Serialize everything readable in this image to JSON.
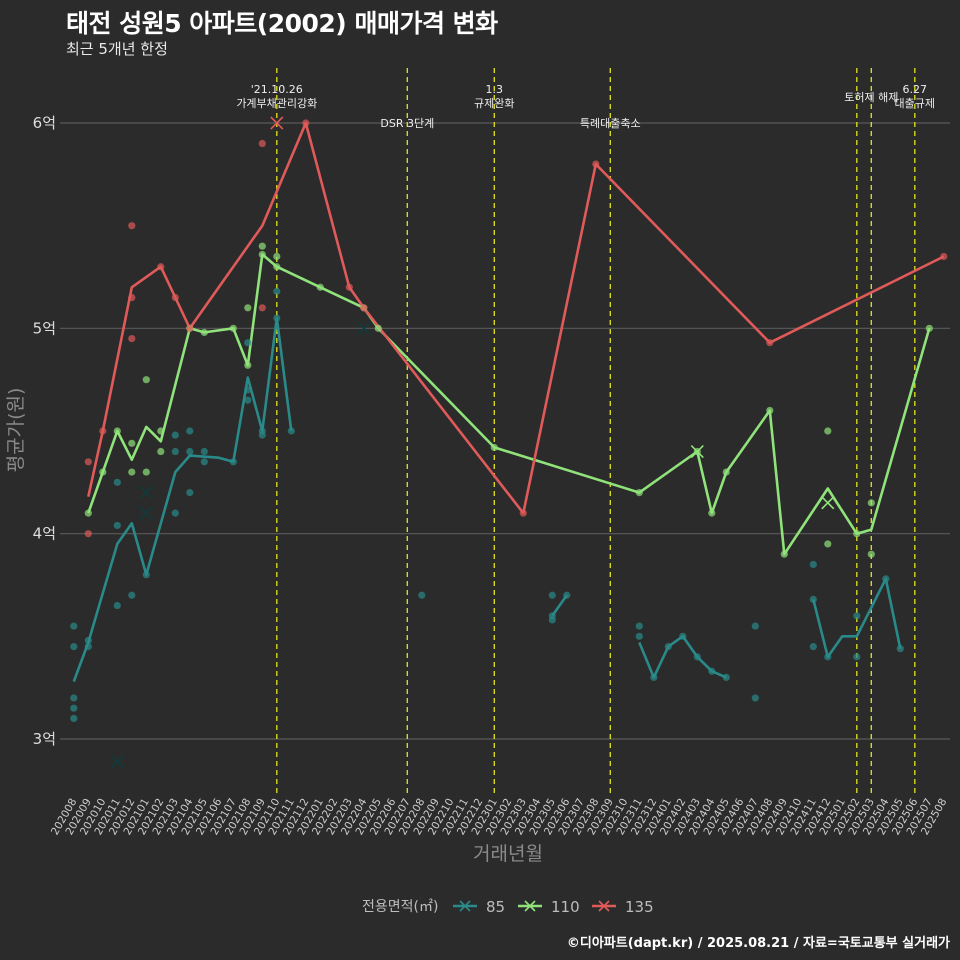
{
  "title": "태전 성원5 아파트(2002) 매매가격 변화",
  "subtitle": "최근 5개년 한정",
  "credit": "©디아파트(dapt.kr) / 2025.08.21 / 자료=국토교통부 실거래가",
  "chart_data": {
    "type": "line",
    "xlabel": "거래년월",
    "ylabel": "평균가(원)",
    "ylim": [
      2.75,
      6.3
    ],
    "y_ticks": [
      3,
      4,
      5,
      6
    ],
    "y_tick_labels": [
      "3억",
      "4억",
      "5억",
      "6억"
    ],
    "x_categories": [
      "202008",
      "202009",
      "202010",
      "202011",
      "202012",
      "202101",
      "202102",
      "202103",
      "202104",
      "202105",
      "202106",
      "202107",
      "202108",
      "202109",
      "202110",
      "202111",
      "202112",
      "202201",
      "202202",
      "202203",
      "202204",
      "202205",
      "202206",
      "202207",
      "202208",
      "202209",
      "202210",
      "202211",
      "202212",
      "202301",
      "202302",
      "202303",
      "202304",
      "202305",
      "202306",
      "202307",
      "202308",
      "202309",
      "202310",
      "202311",
      "202312",
      "202401",
      "202402",
      "202403",
      "202404",
      "202405",
      "202406",
      "202407",
      "202408",
      "202409",
      "202410",
      "202411",
      "202412",
      "202501",
      "202502",
      "202503",
      "202504",
      "202505",
      "202506",
      "202507",
      "202508"
    ],
    "events": [
      {
        "x": 14.0,
        "lines": [
          "'21.10.26",
          "가계부채관리강화"
        ]
      },
      {
        "x": 23.0,
        "lines": [
          "DSR 3단계"
        ]
      },
      {
        "x": 29.0,
        "lines": [
          "1.3",
          "규제완화"
        ]
      },
      {
        "x": 37.0,
        "lines": [
          "특례대출축소"
        ]
      },
      {
        "x": 54.0,
        "lines": []
      },
      {
        "x": 55.0,
        "lines": [
          "토허제 해제"
        ]
      },
      {
        "x": 58.0,
        "lines": [
          "6.27",
          "대출규제"
        ]
      }
    ],
    "legend_title": "전용면적(㎡)",
    "series": [
      {
        "name": "85",
        "color": "#2a8a8a",
        "segments": [
          [
            [
              0,
              3.28
            ],
            [
              1,
              3.47
            ],
            [
              3,
              3.95
            ],
            [
              4,
              4.05
            ],
            [
              5,
              3.8
            ],
            [
              7,
              4.3
            ],
            [
              8,
              4.38
            ],
            [
              10,
              4.37
            ],
            [
              11,
              4.35
            ],
            [
              12,
              4.76
            ],
            [
              13,
              4.5
            ],
            [
              14,
              5.05
            ],
            [
              15,
              4.5
            ]
          ],
          [
            [
              33,
              3.6
            ],
            [
              34,
              3.7
            ]
          ],
          [
            [
              39,
              3.47
            ],
            [
              40,
              3.3
            ],
            [
              41,
              3.45
            ],
            [
              42,
              3.5
            ],
            [
              43,
              3.4
            ],
            [
              44,
              3.33
            ],
            [
              45,
              3.3
            ]
          ],
          [
            [
              51,
              3.68
            ],
            [
              52,
              3.4
            ],
            [
              53,
              3.5
            ],
            [
              54,
              3.5
            ],
            [
              56,
              3.78
            ],
            [
              57,
              3.44
            ]
          ]
        ],
        "points": [
          [
            0,
            3.55
          ],
          [
            0,
            3.45
          ],
          [
            0,
            3.2
          ],
          [
            0,
            3.15
          ],
          [
            0,
            3.1
          ],
          [
            1,
            3.48
          ],
          [
            1,
            3.45
          ],
          [
            3,
            4.25
          ],
          [
            3,
            4.04
          ],
          [
            3,
            3.65
          ],
          [
            4,
            3.7
          ],
          [
            5,
            3.8
          ],
          [
            7,
            4.48
          ],
          [
            7,
            4.4
          ],
          [
            7,
            4.1
          ],
          [
            8,
            4.5
          ],
          [
            8,
            4.4
          ],
          [
            8,
            4.2
          ],
          [
            9,
            4.4
          ],
          [
            9,
            4.35
          ],
          [
            11,
            4.35
          ],
          [
            12,
            4.93
          ],
          [
            12,
            4.7
          ],
          [
            12,
            4.65
          ],
          [
            13,
            4.48
          ],
          [
            13,
            4.5
          ],
          [
            14,
            5.18
          ],
          [
            14,
            5.05
          ],
          [
            15,
            4.5
          ],
          [
            24,
            3.7
          ],
          [
            33,
            3.6
          ],
          [
            33,
            3.58
          ],
          [
            33,
            3.7
          ],
          [
            34,
            3.7
          ],
          [
            39,
            3.55
          ],
          [
            39,
            3.5
          ],
          [
            40,
            3.3
          ],
          [
            41,
            3.45
          ],
          [
            42,
            3.5
          ],
          [
            43,
            3.4
          ],
          [
            44,
            3.33
          ],
          [
            45,
            3.3
          ],
          [
            47,
            3.55
          ],
          [
            47,
            3.2
          ],
          [
            51,
            3.85
          ],
          [
            51,
            3.68
          ],
          [
            51,
            3.45
          ],
          [
            52,
            3.4
          ],
          [
            54,
            3.6
          ],
          [
            54,
            3.4
          ],
          [
            56,
            3.78
          ],
          [
            57,
            3.44
          ]
        ],
        "x_markers": [
          [
            3,
            2.89
          ],
          [
            5,
            4.2
          ],
          [
            5,
            4.1
          ],
          [
            20,
            5.0
          ]
        ]
      },
      {
        "name": "110",
        "color": "#90e37a",
        "segments": [
          [
            [
              1,
              4.1
            ],
            [
              2,
              4.3
            ],
            [
              3,
              4.5
            ],
            [
              4,
              4.36
            ],
            [
              5,
              4.52
            ],
            [
              6,
              4.45
            ],
            [
              8,
              5.0
            ],
            [
              9,
              4.98
            ],
            [
              11,
              5.0
            ],
            [
              12,
              4.82
            ],
            [
              13,
              5.36
            ],
            [
              14,
              5.3
            ],
            [
              17,
              5.2
            ],
            [
              20,
              5.1
            ],
            [
              21,
              5.0
            ],
            [
              29,
              4.42
            ],
            [
              39,
              4.2
            ],
            [
              43,
              4.4
            ],
            [
              44,
              4.1
            ],
            [
              45,
              4.3
            ],
            [
              48,
              4.6
            ],
            [
              49,
              3.9
            ],
            [
              52,
              4.22
            ],
            [
              54,
              4.0
            ],
            [
              55,
              4.02
            ],
            [
              59,
              5.0
            ]
          ]
        ],
        "points": [
          [
            1,
            4.1
          ],
          [
            2,
            4.3
          ],
          [
            3,
            4.5
          ],
          [
            4,
            4.44
          ],
          [
            4,
            4.3
          ],
          [
            5,
            4.75
          ],
          [
            5,
            4.3
          ],
          [
            6,
            4.5
          ],
          [
            6,
            4.4
          ],
          [
            8,
            5.0
          ],
          [
            9,
            4.98
          ],
          [
            11,
            5.0
          ],
          [
            12,
            5.1
          ],
          [
            12,
            4.82
          ],
          [
            13,
            5.4
          ],
          [
            13,
            5.36
          ],
          [
            14,
            5.35
          ],
          [
            14,
            5.3
          ],
          [
            17,
            5.2
          ],
          [
            20,
            5.1
          ],
          [
            21,
            5.0
          ],
          [
            29,
            4.42
          ],
          [
            39,
            4.2
          ],
          [
            43,
            4.4
          ],
          [
            44,
            4.1
          ],
          [
            45,
            4.3
          ],
          [
            48,
            4.6
          ],
          [
            49,
            3.9
          ],
          [
            52,
            4.5
          ],
          [
            52,
            3.95
          ],
          [
            54,
            4.0
          ],
          [
            55,
            4.15
          ],
          [
            55,
            3.9
          ],
          [
            59,
            5.0
          ]
        ],
        "x_markers": [
          [
            43,
            4.4
          ],
          [
            52,
            4.15
          ]
        ]
      },
      {
        "name": "135",
        "color": "#e05a5a",
        "segments": [
          [
            [
              1,
              4.18
            ],
            [
              2,
              4.5
            ],
            [
              4,
              5.2
            ],
            [
              6,
              5.3
            ],
            [
              7,
              5.15
            ],
            [
              8,
              5.0
            ],
            [
              13,
              5.5
            ],
            [
              16,
              6.0
            ],
            [
              19,
              5.2
            ],
            [
              20,
              5.1
            ],
            [
              31,
              4.1
            ],
            [
              36,
              5.8
            ],
            [
              48,
              4.93
            ],
            [
              60,
              5.35
            ]
          ]
        ],
        "points": [
          [
            1,
            4.35
          ],
          [
            1,
            4.0
          ],
          [
            2,
            4.5
          ],
          [
            4,
            5.5
          ],
          [
            4,
            5.15
          ],
          [
            4,
            4.95
          ],
          [
            6,
            5.3
          ],
          [
            7,
            5.15
          ],
          [
            8,
            5.0
          ],
          [
            13,
            5.9
          ],
          [
            13,
            5.1
          ],
          [
            16,
            6.0
          ],
          [
            19,
            5.2
          ],
          [
            20,
            5.1
          ],
          [
            31,
            4.1
          ],
          [
            36,
            5.8
          ],
          [
            48,
            4.93
          ],
          [
            60,
            5.35
          ]
        ],
        "x_markers": [
          [
            14,
            6.0
          ]
        ]
      }
    ]
  }
}
